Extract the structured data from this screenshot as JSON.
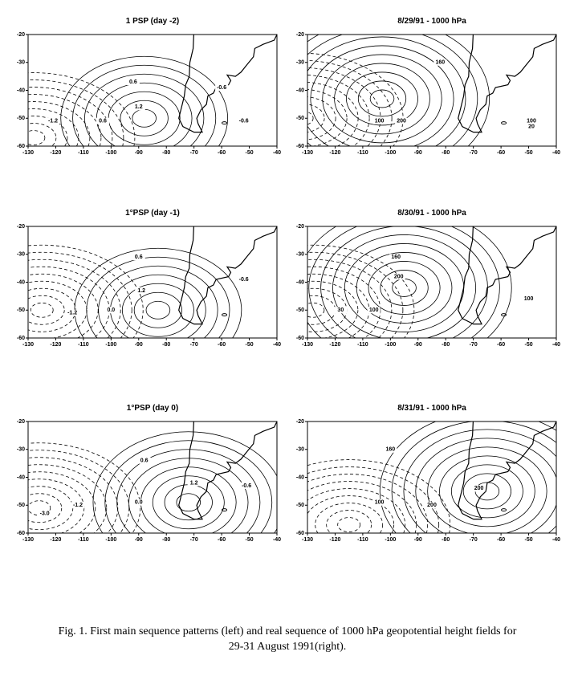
{
  "panels": [
    {
      "title": "1 PSP (day -2)",
      "xticks": [
        -130,
        -120,
        -110,
        -100,
        -90,
        -80,
        -70,
        -60,
        -50,
        -40
      ],
      "yticks": [
        -20,
        -30,
        -40,
        -50,
        -60
      ],
      "contour_labels": [
        "0.6",
        "1.2",
        "-0.6",
        "-0.6",
        "0.6",
        "-1.2"
      ]
    },
    {
      "title": "8/29/91 - 1000 hPa",
      "xticks": [
        -130,
        -120,
        -110,
        -100,
        -90,
        -80,
        -70,
        -60,
        -50,
        -40
      ],
      "yticks": [
        -20,
        -30,
        -40,
        -50,
        -60
      ],
      "contour_labels": [
        "160",
        "200",
        "100",
        "20",
        "100"
      ]
    },
    {
      "title": "1°PSP (day -1)",
      "xticks": [
        -130,
        -120,
        -110,
        -100,
        -90,
        -80,
        -70,
        -60,
        -50,
        -40
      ],
      "yticks": [
        -20,
        -30,
        -40,
        -50,
        -60
      ],
      "contour_labels": [
        "0.6",
        "1.2",
        "-0.6",
        "0.0",
        "-1.2"
      ]
    },
    {
      "title": "8/30/91 - 1000 hPa",
      "xticks": [
        -130,
        -120,
        -110,
        -100,
        -90,
        -80,
        -70,
        -60,
        -50,
        -40
      ],
      "yticks": [
        -20,
        -30,
        -40,
        -50,
        -60
      ],
      "contour_labels": [
        "160",
        "200",
        "100",
        "100",
        "30"
      ]
    },
    {
      "title": "1°PSP (day 0)",
      "xticks": [
        -130,
        -120,
        -110,
        -100,
        -90,
        -80,
        -70,
        -60,
        -50,
        -40
      ],
      "yticks": [
        -20,
        -30,
        -40,
        -50,
        -60
      ],
      "contour_labels": [
        "0.6",
        "1.2",
        "0.0",
        "-0.6",
        "-1.2",
        "-3.0"
      ]
    },
    {
      "title": "8/31/91 - 1000 hPa",
      "xticks": [
        -130,
        -120,
        -110,
        -100,
        -90,
        -80,
        -70,
        -60,
        -50,
        -40
      ],
      "yticks": [
        -20,
        -30,
        -40,
        -50,
        -60
      ],
      "contour_labels": [
        "160",
        "200",
        "100",
        "200"
      ]
    }
  ],
  "caption": [
    "Fig. 1. First main sequence patterns (left) and real sequence of 1000 hPa geopotential height fields for",
    "29-31 August 1991(right)."
  ]
}
